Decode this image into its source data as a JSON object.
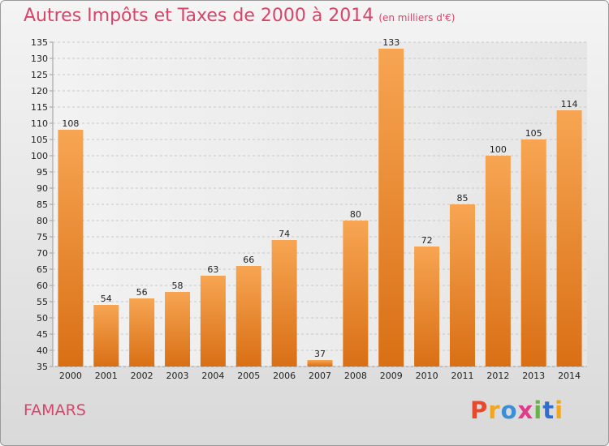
{
  "header": {
    "title": "Autres Impôts et Taxes de 2000 à 2014",
    "subtitle": "(en milliers d'€)"
  },
  "footer": {
    "city": "FAMARS",
    "logo": "Proxiti",
    "logo_colors": [
      "#e8492a",
      "#f2a51f",
      "#3a8fd6",
      "#e23a8a",
      "#6ab04c",
      "#2f6fd0",
      "#f2a51f"
    ]
  },
  "chart_data": {
    "type": "bar",
    "categories": [
      "2000",
      "2001",
      "2002",
      "2003",
      "2004",
      "2005",
      "2006",
      "2007",
      "2008",
      "2009",
      "2010",
      "2011",
      "2012",
      "2013",
      "2014"
    ],
    "values": [
      108,
      54,
      56,
      58,
      63,
      66,
      74,
      37,
      80,
      133,
      72,
      85,
      100,
      105,
      114
    ],
    "value_labels": [
      "108",
      "54",
      "56",
      "58",
      "63",
      "66",
      "74",
      "37",
      "80",
      "133",
      "72",
      "85",
      "100",
      "105",
      "114"
    ],
    "title": "Autres Impôts et Taxes de 2000 à 2014",
    "xlabel": "",
    "ylabel": "",
    "ylim": [
      35,
      135
    ],
    "yticks": [
      35,
      40,
      45,
      50,
      55,
      60,
      65,
      70,
      75,
      80,
      85,
      90,
      95,
      100,
      105,
      110,
      115,
      120,
      125,
      130,
      135
    ],
    "ytick_labels": [
      "35",
      "40",
      "45",
      "50",
      "55",
      "60",
      "65",
      "70",
      "75",
      "80",
      "85",
      "90",
      "95",
      "100",
      "105",
      "110",
      "115",
      "120",
      "125",
      "130",
      "135"
    ],
    "grid": true,
    "bar_color": "#ef8a2e"
  }
}
